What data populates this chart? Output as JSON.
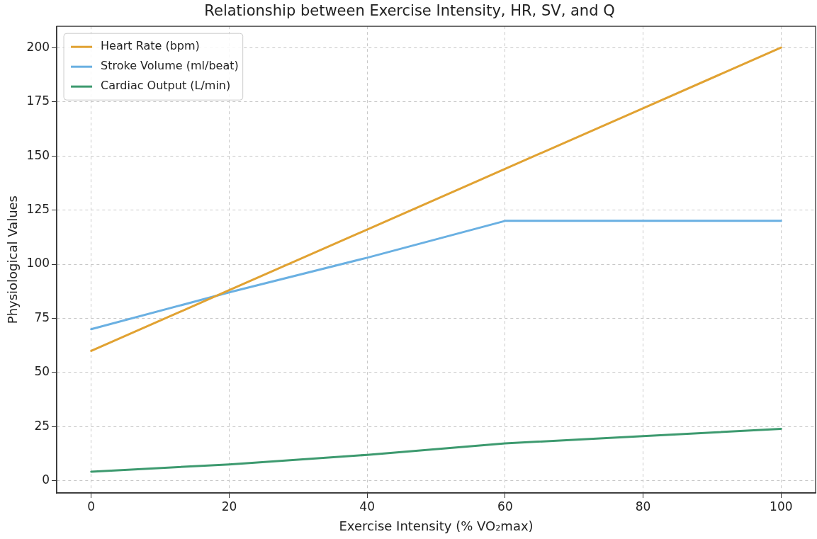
{
  "chart_data": {
    "type": "line",
    "title": "Relationship between Exercise Intensity, HR, SV, and Q",
    "xlabel": "Exercise Intensity (% VO₂max)",
    "ylabel": "Physiological Values",
    "x": [
      0,
      20,
      40,
      60,
      80,
      100
    ],
    "series": [
      {
        "name": "Heart Rate (bpm)",
        "color": "#e1a232",
        "values": [
          60,
          88,
          116,
          144,
          172,
          200
        ]
      },
      {
        "name": "Stroke Volume (ml/beat)",
        "color": "#6ab0e2",
        "values": [
          70,
          87,
          103,
          120,
          120,
          120
        ]
      },
      {
        "name": "Cardiac Output (L/min)",
        "color": "#3d9a6f",
        "values": [
          4.2,
          7.6,
          12,
          17.3,
          20.6,
          24
        ]
      }
    ],
    "xlim": [
      -5,
      105
    ],
    "xticks": [
      0,
      20,
      40,
      60,
      80,
      100
    ],
    "ylim": [
      -5.6,
      209.8
    ],
    "yticks": [
      0,
      25,
      50,
      75,
      100,
      125,
      150,
      175,
      200
    ],
    "grid": true,
    "legend": "top left",
    "marker": "none",
    "line_style": "solid"
  }
}
